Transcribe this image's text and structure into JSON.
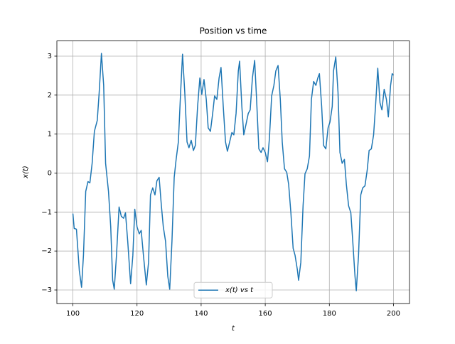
{
  "chart_data": {
    "type": "line",
    "title": "Position vs time",
    "x_label": "t",
    "y_label": "x(t)",
    "x": [
      100,
      100.4,
      101.1,
      102,
      102.7,
      103.3,
      104,
      104.7,
      105.3,
      106,
      106.7,
      107.6,
      108.2,
      108.9,
      109.6,
      110.2,
      111.1,
      111.8,
      112.4,
      112.9,
      113.6,
      114.4,
      115.1,
      115.8,
      116.4,
      117.1,
      118,
      118.7,
      119.3,
      120,
      120.7,
      121.3,
      122,
      122.9,
      123.6,
      124.2,
      124.9,
      125.6,
      126.2,
      126.9,
      127.6,
      128.2,
      128.9,
      129.6,
      130.2,
      130.9,
      131.6,
      132.2,
      132.9,
      133.6,
      134.2,
      134.9,
      135.6,
      136.2,
      136.9,
      137.6,
      138.2,
      138.9,
      139.6,
      140.2,
      140.9,
      141.6,
      142.2,
      142.9,
      143.6,
      144.2,
      144.9,
      145.6,
      146.2,
      146.9,
      147.6,
      148.2,
      148.9,
      149.6,
      150.2,
      150.9,
      151.6,
      152,
      152.7,
      153.3,
      154,
      154.7,
      155.3,
      156,
      156.7,
      157.3,
      158,
      158.7,
      159.3,
      160,
      160.7,
      161.3,
      162,
      162.7,
      163.3,
      164,
      164.7,
      165.3,
      166,
      166.7,
      167.3,
      168,
      168.7,
      169.3,
      170,
      170.4,
      171.1,
      171.8,
      172.4,
      173.1,
      173.8,
      174.4,
      175.1,
      175.8,
      176.4,
      176.9,
      177.6,
      178.2,
      178.9,
      179.6,
      180.2,
      180.9,
      181.3,
      182,
      182.7,
      183.3,
      184,
      184.7,
      185.3,
      186,
      186.7,
      187.3,
      188,
      188.4,
      189.1,
      189.8,
      190.4,
      191.1,
      191.8,
      192.4,
      193.1,
      193.8,
      194.4,
      195.1,
      195.8,
      196.4,
      197.1,
      197.8,
      198.4,
      199.1,
      199.6,
      200
    ],
    "series": [
      {
        "name": "x(t) vs t",
        "color": "#1f77b4",
        "values": [
          -1.04,
          -1.42,
          -1.44,
          -2.5,
          -2.93,
          -2.1,
          -0.47,
          -0.22,
          -0.25,
          0.25,
          1.07,
          1.35,
          2.07,
          3.07,
          2.25,
          0.25,
          -0.47,
          -1.38,
          -2.75,
          -2.98,
          -2.1,
          -0.87,
          -1.11,
          -1.16,
          -1.02,
          -1.75,
          -2.84,
          -2.11,
          -0.93,
          -1.38,
          -1.56,
          -1.47,
          -2.11,
          -2.87,
          -2.29,
          -0.56,
          -0.38,
          -0.56,
          -0.2,
          -0.11,
          -0.84,
          -1.38,
          -1.75,
          -2.65,
          -2.98,
          -1.75,
          -0.11,
          0.35,
          0.8,
          2.07,
          3.05,
          2.07,
          0.8,
          0.65,
          0.84,
          0.58,
          0.71,
          1.71,
          2.44,
          2.02,
          2.4,
          1.89,
          1.16,
          1.07,
          1.53,
          1.98,
          1.89,
          2.44,
          2.71,
          1.71,
          0.8,
          0.56,
          0.8,
          1.04,
          0.98,
          1.53,
          2.62,
          2.87,
          1.71,
          0.98,
          1.25,
          1.53,
          1.62,
          2.44,
          2.89,
          1.89,
          0.62,
          0.53,
          0.65,
          0.53,
          0.29,
          0.89,
          1.98,
          2.25,
          2.62,
          2.76,
          1.89,
          0.8,
          0.11,
          0.02,
          -0.29,
          -1.02,
          -1.93,
          -2.11,
          -2.47,
          -2.75,
          -2.29,
          -0.84,
          -0.02,
          0.11,
          0.44,
          1.89,
          2.35,
          2.25,
          2.44,
          2.55,
          1.71,
          0.71,
          0.62,
          1.16,
          1.31,
          1.71,
          2.62,
          2.98,
          2.07,
          0.53,
          0.25,
          0.35,
          -0.29,
          -0.84,
          -1.02,
          -1.75,
          -2.65,
          -3.02,
          -2.11,
          -0.56,
          -0.38,
          -0.33,
          0.07,
          0.58,
          0.62,
          0.98,
          1.71,
          2.69,
          1.8,
          1.62,
          2.15,
          1.89,
          1.44,
          2.25,
          2.55,
          2.51
        ]
      }
    ],
    "xlim": [
      95,
      205
    ],
    "ylim": [
      -3.35,
      3.39
    ],
    "xticks": [
      100,
      120,
      140,
      160,
      180,
      200
    ],
    "yticks": [
      {
        "value": -3,
        "label": "−3"
      },
      {
        "value": -2,
        "label": "−2"
      },
      {
        "value": -1,
        "label": "−1"
      },
      0,
      1,
      2,
      3
    ],
    "grid": true,
    "legend": "lower center"
  }
}
